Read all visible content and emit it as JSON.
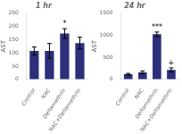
{
  "chart_data": [
    {
      "type": "bar",
      "title": "1 hr",
      "ylabel": "AST",
      "categories": [
        "Control",
        "NAC",
        "Deltamethrin",
        "NAC+Deltamethrin"
      ],
      "values": [
        107,
        107,
        173,
        137
      ],
      "errors": [
        15,
        28,
        18,
        22
      ],
      "color": "#2d2f7a",
      "ylim": [
        0,
        250
      ],
      "yticks": [
        0,
        50,
        100,
        150,
        200,
        250
      ],
      "grid": false,
      "annotations": [
        {
          "category": "Deltamethrin",
          "text": "*"
        }
      ]
    },
    {
      "type": "bar",
      "title": "24 hr",
      "ylabel": "AST",
      "categories": [
        "Control",
        "NAC",
        "Deltamethrin",
        "NAC+Deltamethrin"
      ],
      "values": [
        115,
        160,
        1020,
        215
      ],
      "errors": [
        20,
        30,
        50,
        45
      ],
      "color": "#2d2f7a",
      "ylim": [
        0,
        1500
      ],
      "yticks": [
        0,
        500,
        1000,
        1500
      ],
      "grid": false,
      "annotations": [
        {
          "category": "Deltamethrin",
          "text": "***"
        },
        {
          "category": "NAC+Deltamethrin",
          "text": "+"
        }
      ]
    }
  ]
}
